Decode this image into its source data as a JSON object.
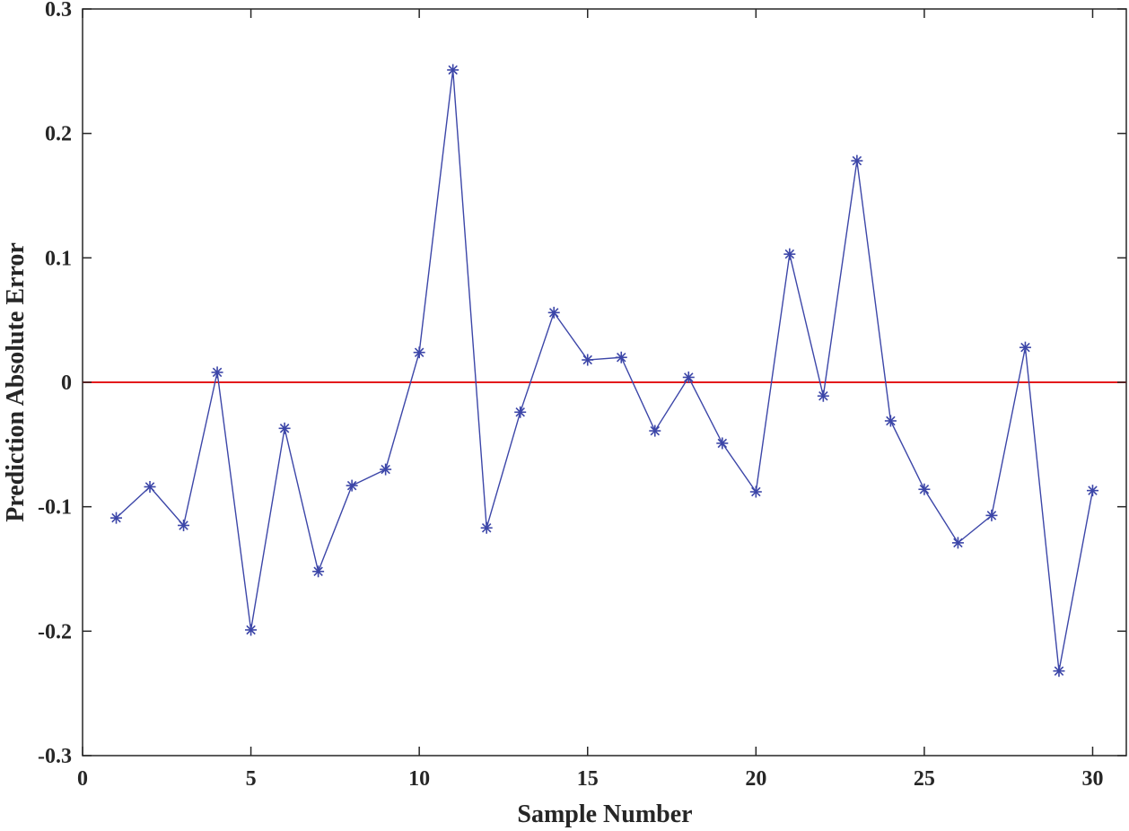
{
  "chart_data": {
    "type": "line",
    "title": "",
    "xlabel": "Sample Number",
    "ylabel": "Prediction Absolute Error",
    "xlim": [
      0,
      31
    ],
    "ylim": [
      -0.3,
      0.3
    ],
    "xticks": [
      0,
      5,
      10,
      15,
      20,
      25,
      30
    ],
    "yticks": [
      -0.3,
      -0.2,
      -0.1,
      0,
      0.1,
      0.2,
      0.3
    ],
    "xtick_labels": [
      "0",
      "5",
      "10",
      "15",
      "20",
      "25",
      "30"
    ],
    "ytick_labels": [
      "-0.3",
      "-0.2",
      "-0.1",
      "0",
      "0.1",
      "0.2",
      "0.3"
    ],
    "grid": false,
    "legend": "none",
    "series": [
      {
        "marker": "asterisk",
        "color": "#3C46A8",
        "x": [
          1,
          2,
          3,
          4,
          5,
          6,
          7,
          8,
          9,
          10,
          11,
          12,
          13,
          14,
          15,
          16,
          17,
          18,
          19,
          20,
          21,
          22,
          23,
          24,
          25,
          26,
          27,
          28,
          29,
          30
        ],
        "y": [
          -0.109,
          -0.084,
          -0.115,
          0.008,
          -0.199,
          -0.037,
          -0.152,
          -0.083,
          -0.07,
          0.024,
          0.251,
          -0.117,
          -0.024,
          0.056,
          0.018,
          0.02,
          -0.039,
          0.004,
          -0.049,
          -0.088,
          0.103,
          -0.011,
          0.178,
          -0.031,
          -0.086,
          -0.129,
          -0.107,
          0.028,
          -0.232,
          -0.087
        ]
      }
    ],
    "reference_lines": [
      {
        "axis": "y",
        "value": 0,
        "color": "#E41A1C"
      }
    ]
  }
}
